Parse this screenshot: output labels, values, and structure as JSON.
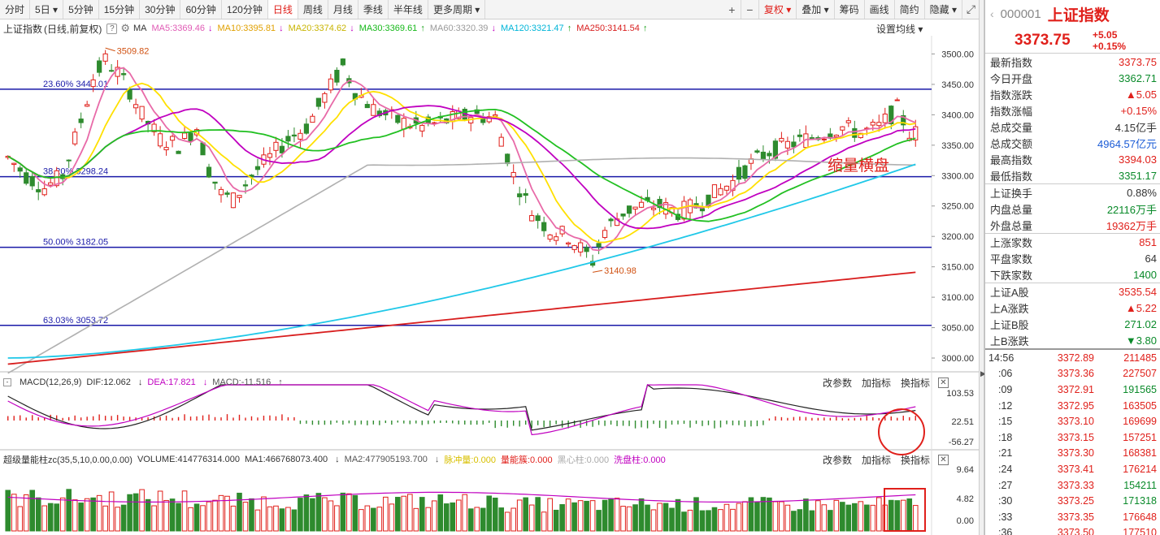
{
  "toolbar": {
    "periods": [
      "分时",
      "5日",
      "5分钟",
      "15分钟",
      "30分钟",
      "60分钟",
      "120分钟",
      "日线",
      "周线",
      "月线",
      "季线",
      "半年线",
      "更多周期"
    ],
    "active": "日线",
    "right": [
      "复权",
      "叠加",
      "筹码",
      "画线",
      "简约",
      "隐藏"
    ]
  },
  "ma_line": {
    "name": "上证指数",
    "mode": "(日线,前复权)",
    "label": "MA",
    "items": [
      {
        "text": "MA5:3369.46",
        "arrow": "↓",
        "color": "#e05bb5"
      },
      {
        "text": "MA10:3395.81",
        "arrow": "↓",
        "color": "#e0a000"
      },
      {
        "text": "MA20:3374.62",
        "arrow": "↓",
        "color": "#c8b400"
      },
      {
        "text": "MA30:3369.61",
        "arrow": "↑",
        "color": "#16b81a"
      },
      {
        "text": "MA60:3320.39",
        "arrow": "↓",
        "color": "#9a9a9a"
      },
      {
        "text": "MA120:3321.47",
        "arrow": "↑",
        "color": "#00b5d8"
      },
      {
        "text": "MA250:3141.54",
        "arrow": "↑",
        "color": "#d81e1e"
      }
    ],
    "settings": "设置均线"
  },
  "main_chart": {
    "y_ticks": [
      "3500.00",
      "3450.00",
      "3400.00",
      "3350.00",
      "3300.00",
      "3250.00",
      "3200.00",
      "3150.00",
      "3100.00",
      "3050.00",
      "3000.00"
    ],
    "y_range": [
      2980,
      3530
    ],
    "fib_lines": [
      {
        "label": "23.60% 3442.01",
        "value": 3442.01
      },
      {
        "label": "38.20% 3298.24",
        "value": 3298.24
      },
      {
        "label": "50.00% 3182.05",
        "value": 3182.05
      },
      {
        "label": "63.03% 3053.72",
        "value": 3053.72
      }
    ],
    "high_label": "3509.82",
    "low_label": "3140.98",
    "annotation": "缩量横盘"
  },
  "macd_panel": {
    "title": "MACD(12,26,9)",
    "dif": "DIF:12.062",
    "dea": "DEA:17.821",
    "macd": "MACD:-11.516",
    "tools": [
      "改参数",
      "加指标",
      "换指标"
    ],
    "y_ticks": [
      "103.53",
      "22.51",
      "-56.27"
    ]
  },
  "vol_panel": {
    "title": "超级量能柱zc(35,5,10,0.00,0.00)",
    "volume": "VOLUME:414776314.000",
    "ma1": "MA1:466768073.400",
    "ma2": "MA2:477905193.700",
    "pulse": "脉冲量:0.000",
    "energy": "量能簇:0.000",
    "black": "黑心柱:0.000",
    "wash": "洗盘柱:0.000",
    "tools": [
      "改参数",
      "加指标",
      "换指标"
    ],
    "y_ticks": [
      "9.64",
      "4.82",
      "0.00"
    ]
  },
  "side": {
    "code": "000001",
    "name": "上证指数",
    "price": "3373.75",
    "change": "+5.05",
    "change_pct": "+0.15%",
    "stats1": [
      {
        "label": "最新指数",
        "value": "3373.75",
        "color": "red"
      },
      {
        "label": "今日开盘",
        "value": "3362.71",
        "color": "green"
      },
      {
        "label": "指数涨跌",
        "value": "▲5.05",
        "color": "red"
      },
      {
        "label": "指数涨幅",
        "value": "+0.15%",
        "color": "red"
      },
      {
        "label": "总成交量",
        "value": "4.15亿手",
        "color": "black"
      },
      {
        "label": "总成交额",
        "value": "4964.57亿元",
        "color": "blue"
      },
      {
        "label": "最高指数",
        "value": "3394.03",
        "color": "red"
      },
      {
        "label": "最低指数",
        "value": "3351.17",
        "color": "green"
      }
    ],
    "stats2": [
      {
        "label": "上证换手",
        "value": "0.88%",
        "color": "black"
      },
      {
        "label": "内盘总量",
        "value": "22116万手",
        "color": "green"
      },
      {
        "label": "外盘总量",
        "value": "19362万手",
        "color": "red"
      }
    ],
    "stats3": [
      {
        "label": "上涨家数",
        "value": "851",
        "color": "red"
      },
      {
        "label": "平盘家数",
        "value": "64",
        "color": "black"
      },
      {
        "label": "下跌家数",
        "value": "1400",
        "color": "green"
      }
    ],
    "stats4": [
      {
        "label": "上证A股",
        "value": "3535.54",
        "color": "red"
      },
      {
        "label": "上A涨跌",
        "value": "▲5.22",
        "color": "red"
      },
      {
        "label": "上证B股",
        "value": "271.02",
        "color": "green"
      },
      {
        "label": "上B涨跌",
        "value": "▼3.80",
        "color": "green"
      }
    ],
    "ticks": [
      {
        "t": "14:56",
        "p": "3372.89",
        "q": "211485",
        "qc": "r"
      },
      {
        "t": ":06",
        "p": "3373.36",
        "q": "227507",
        "qc": "r"
      },
      {
        "t": ":09",
        "p": "3372.91",
        "q": "191565",
        "qc": "g"
      },
      {
        "t": ":12",
        "p": "3372.95",
        "q": "163505",
        "qc": "r"
      },
      {
        "t": ":15",
        "p": "3373.10",
        "q": "169699",
        "qc": "r"
      },
      {
        "t": ":18",
        "p": "3373.15",
        "q": "157251",
        "qc": "r"
      },
      {
        "t": ":21",
        "p": "3373.30",
        "q": "168381",
        "qc": "r"
      },
      {
        "t": ":24",
        "p": "3373.41",
        "q": "176214",
        "qc": "r"
      },
      {
        "t": ":27",
        "p": "3373.33",
        "q": "154211",
        "qc": "g"
      },
      {
        "t": ":30",
        "p": "3373.25",
        "q": "171318",
        "qc": "g"
      },
      {
        "t": ":33",
        "p": "3373.35",
        "q": "176648",
        "qc": "r"
      },
      {
        "t": ":36",
        "p": "3373.50",
        "q": "177510",
        "qc": "r"
      }
    ]
  },
  "colors": {
    "up": "#e0201b",
    "down": "#2e8b2e",
    "fib": "#1a1aa8",
    "ma5": "#e86aa8",
    "ma10": "#ffe000",
    "ma20": "#c000c0",
    "ma30": "#22c022",
    "ma60": "#b0b0b0",
    "ma120": "#20c8e8",
    "ma250": "#d81e1e"
  }
}
